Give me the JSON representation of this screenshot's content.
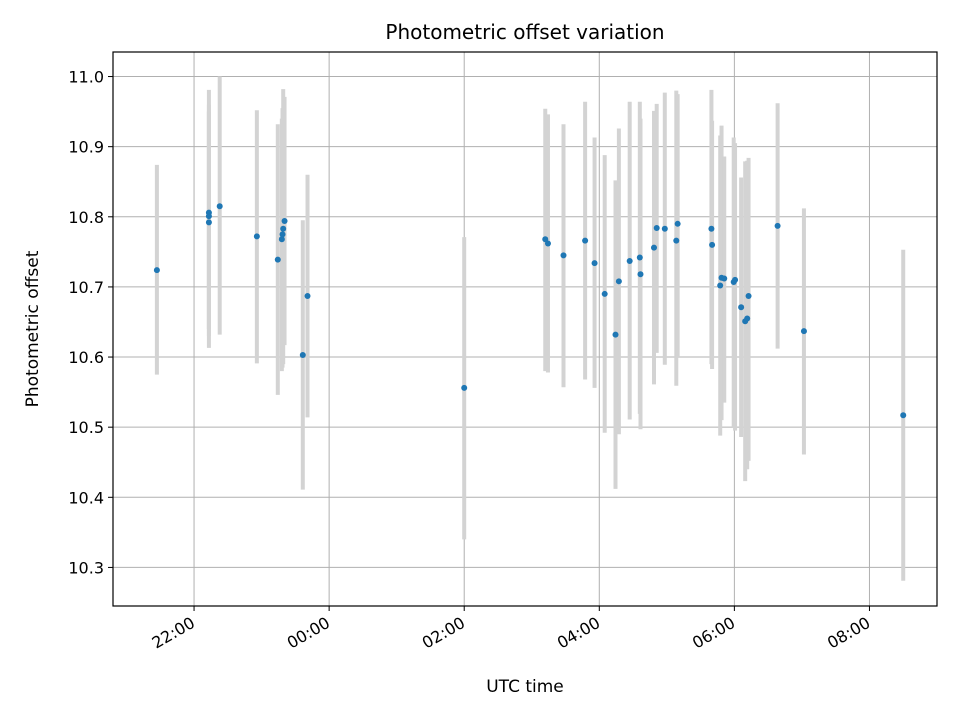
{
  "chart_data": {
    "type": "scatter",
    "title": "Photometric offset variation",
    "xlabel": "UTC time",
    "ylabel": "Photometric offset",
    "x_unit": "UTC time (h, relative to 00:00; 21:30 = -2.5)",
    "xlim": [
      -3.2,
      9.0
    ],
    "ylim": [
      10.245,
      11.035
    ],
    "x_ticks": [
      {
        "value": -2,
        "label": "22:00"
      },
      {
        "value": 0,
        "label": "00:00"
      },
      {
        "value": 2,
        "label": "02:00"
      },
      {
        "value": 4,
        "label": "04:00"
      },
      {
        "value": 6,
        "label": "06:00"
      },
      {
        "value": 8,
        "label": "08:00"
      }
    ],
    "y_ticks": [
      "10.3",
      "10.4",
      "10.5",
      "10.6",
      "10.7",
      "10.8",
      "10.9",
      "11.0"
    ],
    "grid": true,
    "colors": {
      "marker": "#1f77b4",
      "errorbar": "#d3d3d3",
      "grid": "#b0b0b0"
    },
    "points": [
      {
        "x": -2.55,
        "y": 10.724,
        "lo": 10.575,
        "hi": 10.874
      },
      {
        "x": -1.78,
        "y": 10.806,
        "lo": 10.613,
        "hi": 10.981
      },
      {
        "x": -1.78,
        "y": 10.801,
        "lo": 10.64,
        "hi": 10.96
      },
      {
        "x": -1.78,
        "y": 10.792,
        "lo": 10.63,
        "hi": 10.95
      },
      {
        "x": -1.62,
        "y": 10.815,
        "lo": 10.632,
        "hi": 11.0
      },
      {
        "x": -1.07,
        "y": 10.772,
        "lo": 10.591,
        "hi": 10.952
      },
      {
        "x": -0.76,
        "y": 10.739,
        "lo": 10.546,
        "hi": 10.932
      },
      {
        "x": -0.7,
        "y": 10.768,
        "lo": 10.58,
        "hi": 10.94
      },
      {
        "x": -0.69,
        "y": 10.775,
        "lo": 10.585,
        "hi": 10.955
      },
      {
        "x": -0.68,
        "y": 10.783,
        "lo": 10.59,
        "hi": 10.982
      },
      {
        "x": -0.66,
        "y": 10.794,
        "lo": 10.617,
        "hi": 10.971
      },
      {
        "x": -0.39,
        "y": 10.603,
        "lo": 10.411,
        "hi": 10.795
      },
      {
        "x": -0.32,
        "y": 10.687,
        "lo": 10.514,
        "hi": 10.86
      },
      {
        "x": 2.0,
        "y": 10.556,
        "lo": 10.34,
        "hi": 10.771
      },
      {
        "x": 3.2,
        "y": 10.768,
        "lo": 10.58,
        "hi": 10.954
      },
      {
        "x": 3.24,
        "y": 10.762,
        "lo": 10.578,
        "hi": 10.946
      },
      {
        "x": 3.47,
        "y": 10.745,
        "lo": 10.557,
        "hi": 10.932
      },
      {
        "x": 3.79,
        "y": 10.766,
        "lo": 10.568,
        "hi": 10.964
      },
      {
        "x": 3.93,
        "y": 10.734,
        "lo": 10.556,
        "hi": 10.913
      },
      {
        "x": 4.08,
        "y": 10.69,
        "lo": 10.492,
        "hi": 10.888
      },
      {
        "x": 4.24,
        "y": 10.632,
        "lo": 10.412,
        "hi": 10.852
      },
      {
        "x": 4.29,
        "y": 10.708,
        "lo": 10.49,
        "hi": 10.926
      },
      {
        "x": 4.45,
        "y": 10.737,
        "lo": 10.511,
        "hi": 10.964
      },
      {
        "x": 4.6,
        "y": 10.742,
        "lo": 10.519,
        "hi": 10.964
      },
      {
        "x": 4.61,
        "y": 10.718,
        "lo": 10.497,
        "hi": 10.94
      },
      {
        "x": 4.81,
        "y": 10.756,
        "lo": 10.561,
        "hi": 10.951
      },
      {
        "x": 4.85,
        "y": 10.784,
        "lo": 10.606,
        "hi": 10.961
      },
      {
        "x": 4.97,
        "y": 10.783,
        "lo": 10.589,
        "hi": 10.977
      },
      {
        "x": 5.14,
        "y": 10.766,
        "lo": 10.559,
        "hi": 10.98
      },
      {
        "x": 5.16,
        "y": 10.79,
        "lo": 10.6,
        "hi": 10.975
      },
      {
        "x": 5.66,
        "y": 10.783,
        "lo": 10.59,
        "hi": 10.981
      },
      {
        "x": 5.67,
        "y": 10.76,
        "lo": 10.583,
        "hi": 10.937
      },
      {
        "x": 5.79,
        "y": 10.702,
        "lo": 10.488,
        "hi": 10.916
      },
      {
        "x": 5.81,
        "y": 10.713,
        "lo": 10.51,
        "hi": 10.93
      },
      {
        "x": 5.85,
        "y": 10.712,
        "lo": 10.535,
        "hi": 10.886
      },
      {
        "x": 5.99,
        "y": 10.707,
        "lo": 10.5,
        "hi": 10.913
      },
      {
        "x": 6.01,
        "y": 10.71,
        "lo": 10.495,
        "hi": 10.905
      },
      {
        "x": 6.1,
        "y": 10.671,
        "lo": 10.486,
        "hi": 10.856
      },
      {
        "x": 6.16,
        "y": 10.651,
        "lo": 10.423,
        "hi": 10.879
      },
      {
        "x": 6.19,
        "y": 10.655,
        "lo": 10.44,
        "hi": 10.88
      },
      {
        "x": 6.21,
        "y": 10.687,
        "lo": 10.452,
        "hi": 10.884
      },
      {
        "x": 6.64,
        "y": 10.787,
        "lo": 10.612,
        "hi": 10.962
      },
      {
        "x": 7.03,
        "y": 10.637,
        "lo": 10.461,
        "hi": 10.812
      },
      {
        "x": 8.5,
        "y": 10.517,
        "lo": 10.281,
        "hi": 10.753
      }
    ]
  }
}
